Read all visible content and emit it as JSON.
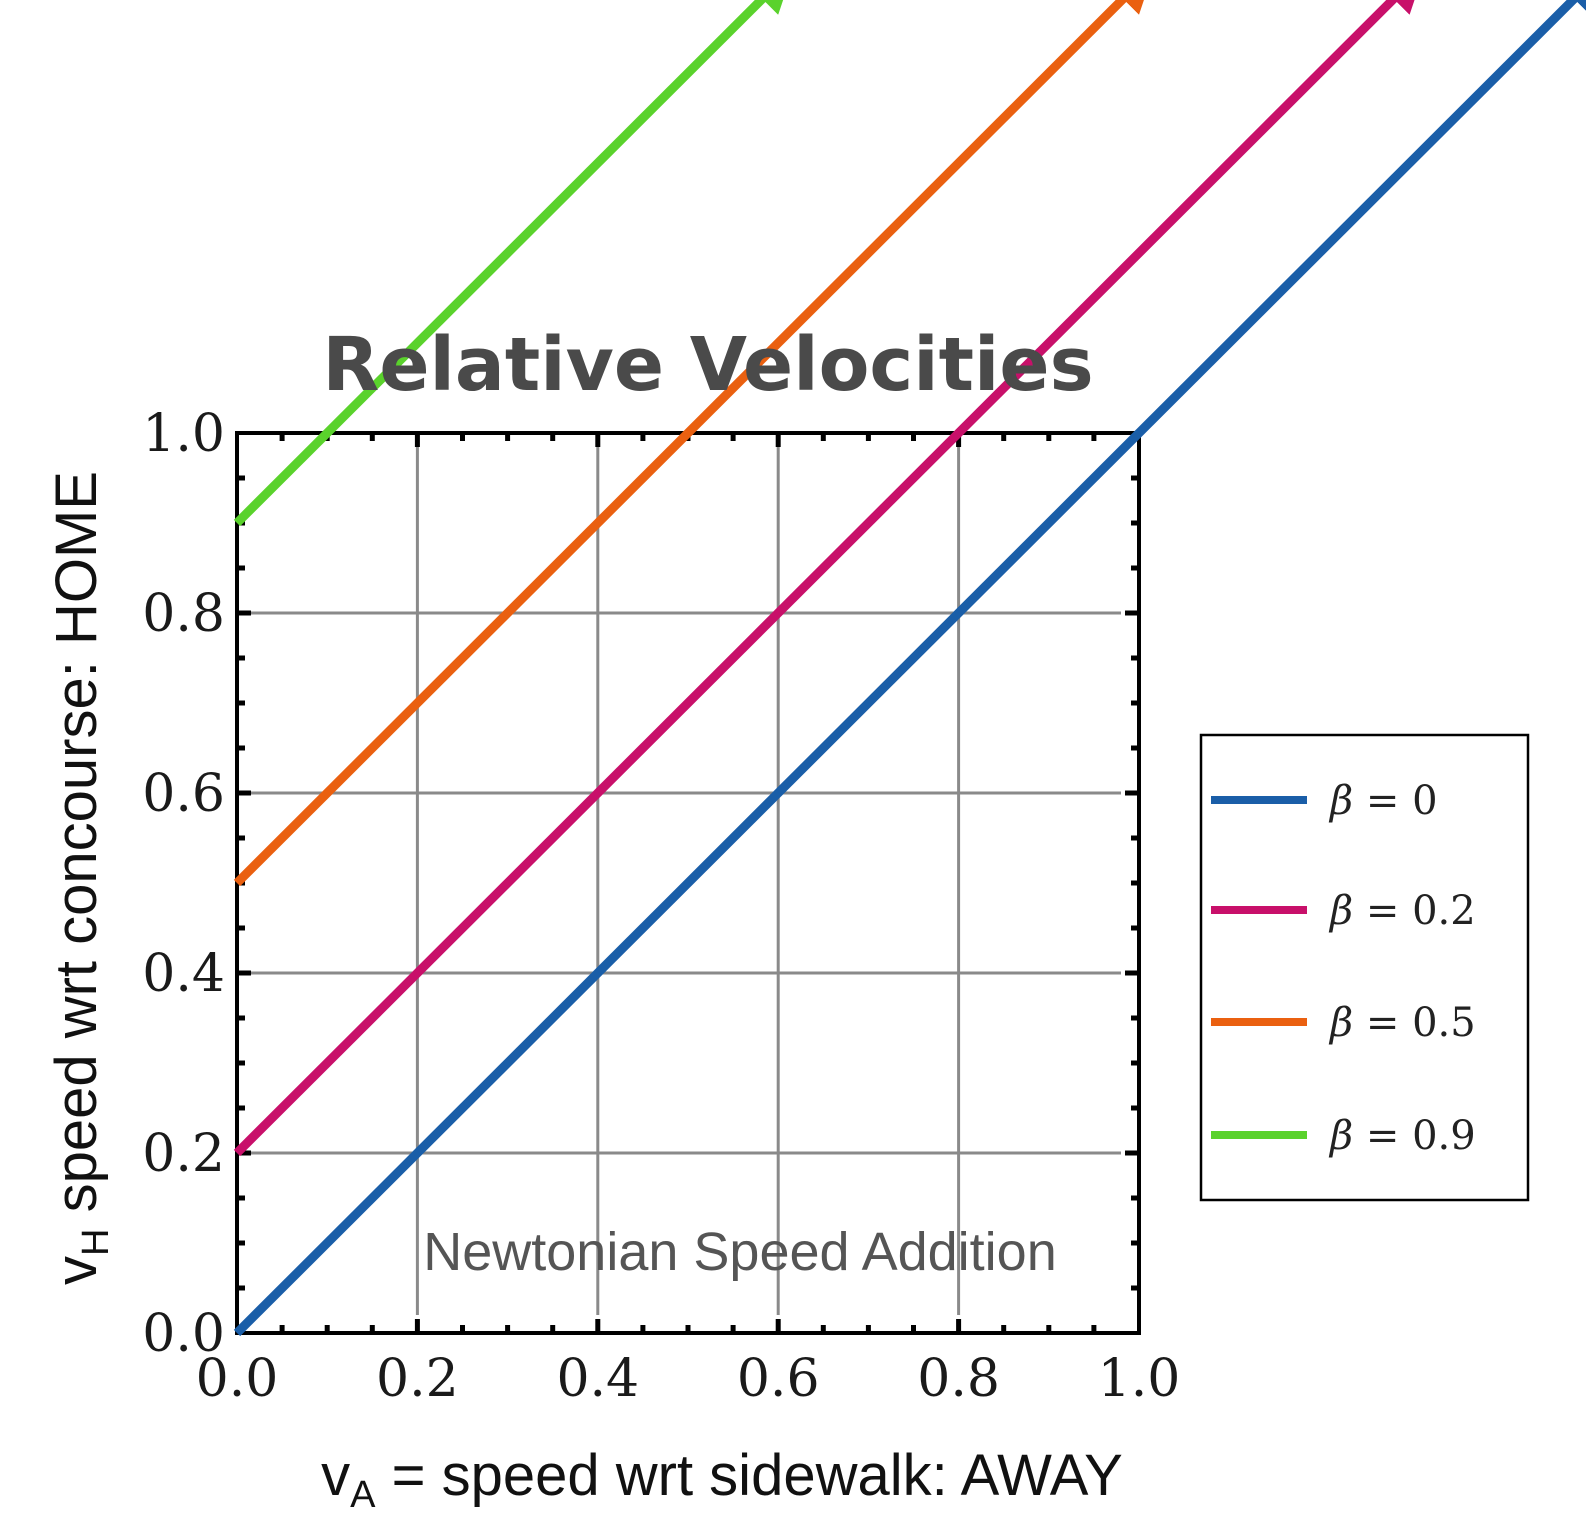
{
  "chart_data": {
    "type": "line",
    "title": "Relative Velocities",
    "xlabel": "v",
    "xlabel_sub": "A",
    "xlabel_rest": " = speed wrt sidewalk: AWAY",
    "ylabel": "v",
    "ylabel_sub": "H",
    "ylabel_rest": " speed wrt concourse: HOME",
    "annotation": "Newtonian Speed Addition",
    "xlim": [
      0,
      1
    ],
    "ylim": [
      0,
      1
    ],
    "x_ticks": [
      "0.0",
      "0.2",
      "0.4",
      "0.6",
      "0.8",
      "1.0"
    ],
    "y_ticks": [
      "0.0",
      "0.2",
      "0.4",
      "0.6",
      "0.8",
      "1.0"
    ],
    "grid": true,
    "legend_position": "right",
    "series": [
      {
        "name": "β = 0",
        "beta": "β",
        "eq": " = 0",
        "color": "#1a5ea8",
        "x": [
          0,
          1.0
        ],
        "y": [
          0.0,
          1.0
        ]
      },
      {
        "name": "β = 0.2",
        "beta": "β",
        "eq": " = 0.2",
        "color": "#c8106a",
        "x": [
          0,
          0.8
        ],
        "y": [
          0.2,
          1.0
        ]
      },
      {
        "name": "β = 0.5",
        "beta": "β",
        "eq": " = 0.5",
        "color": "#ea6010",
        "x": [
          0,
          0.5
        ],
        "y": [
          0.5,
          1.0
        ]
      },
      {
        "name": "β = 0.9",
        "beta": "β",
        "eq": " = 0.9",
        "color": "#5ad22c",
        "x": [
          0,
          0.1
        ],
        "y": [
          0.9,
          1.0
        ]
      }
    ]
  }
}
